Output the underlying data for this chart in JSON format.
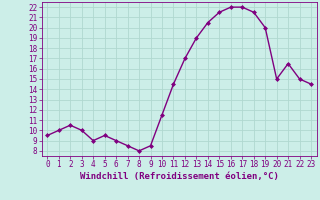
{
  "x": [
    0,
    1,
    2,
    3,
    4,
    5,
    6,
    7,
    8,
    9,
    10,
    11,
    12,
    13,
    14,
    15,
    16,
    17,
    18,
    19,
    20,
    21,
    22,
    23
  ],
  "y": [
    9.5,
    10.0,
    10.5,
    10.0,
    9.0,
    9.5,
    9.0,
    8.5,
    8.0,
    8.5,
    11.5,
    14.5,
    17.0,
    19.0,
    20.5,
    21.5,
    22.0,
    22.0,
    21.5,
    20.0,
    15.0,
    16.5,
    15.0,
    14.5
  ],
  "line_color": "#800080",
  "marker": "D",
  "marker_size": 2.0,
  "line_width": 1.0,
  "xlabel": "Windchill (Refroidissement éolien,°C)",
  "xlim": [
    -0.5,
    23.5
  ],
  "ylim": [
    7.5,
    22.5
  ],
  "yticks": [
    8,
    9,
    10,
    11,
    12,
    13,
    14,
    15,
    16,
    17,
    18,
    19,
    20,
    21,
    22
  ],
  "xticks": [
    0,
    1,
    2,
    3,
    4,
    5,
    6,
    7,
    8,
    9,
    10,
    11,
    12,
    13,
    14,
    15,
    16,
    17,
    18,
    19,
    20,
    21,
    22,
    23
  ],
  "background_color": "#cceee8",
  "grid_color": "#b0d8d0",
  "tick_color": "#800080",
  "label_color": "#800080",
  "font_size_axis": 5.5,
  "font_size_label": 6.5
}
